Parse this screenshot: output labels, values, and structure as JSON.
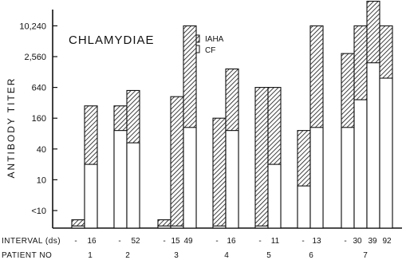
{
  "chart_data": {
    "type": "bar",
    "title": "CHLAMYDIAE",
    "ylabel": "ANTIBODY TITER",
    "yticks": [
      "<10",
      "10",
      "40",
      "160",
      "640",
      "2,560",
      "10,240"
    ],
    "ylim": [
      -1,
      7.6
    ],
    "y_scale": "log4 (titer steps; <10 = level 0, 10 = level 1, 40 = level 2, ...)",
    "legend": {
      "position": "top-center",
      "entries": [
        {
          "label": "IAHA",
          "pattern": "hatched"
        },
        {
          "label": "CF",
          "pattern": "open"
        }
      ]
    },
    "row_labels": {
      "interval": "INTERVAL (ds)",
      "patient": "PATIENT NO"
    },
    "patients": [
      {
        "id": "1",
        "samples": [
          {
            "interval": "-",
            "CF": -0.5,
            "IAHA": -0.3
          },
          {
            "interval": "16",
            "CF": 1.5,
            "IAHA": 3.4
          }
        ]
      },
      {
        "id": "2",
        "samples": [
          {
            "interval": "-",
            "CF": 2.6,
            "IAHA": 3.4
          },
          {
            "interval": "52",
            "CF": 2.2,
            "IAHA": 3.9
          }
        ]
      },
      {
        "id": "3",
        "samples": [
          {
            "interval": "-",
            "CF": -0.5,
            "IAHA": -0.3
          },
          {
            "interval": "15",
            "CF": -0.5,
            "IAHA": 3.7
          },
          {
            "interval": "49",
            "CF": 2.7,
            "IAHA": 6.0
          }
        ]
      },
      {
        "id": "4",
        "samples": [
          {
            "interval": "-",
            "CF": -0.5,
            "IAHA": 3.0
          },
          {
            "interval": "16",
            "CF": 2.6,
            "IAHA": 4.6
          }
        ]
      },
      {
        "id": "5",
        "samples": [
          {
            "interval": "-",
            "CF": -0.5,
            "IAHA": 4.0
          },
          {
            "interval": "11",
            "CF": 1.5,
            "IAHA": 4.0
          }
        ]
      },
      {
        "id": "6",
        "samples": [
          {
            "interval": "-",
            "CF": 0.8,
            "IAHA": 2.6
          },
          {
            "interval": "13",
            "CF": 2.7,
            "IAHA": 6.0
          }
        ]
      },
      {
        "id": "7",
        "samples": [
          {
            "interval": "-",
            "CF": 2.7,
            "IAHA": 5.1
          },
          {
            "interval": "30",
            "CF": 3.6,
            "IAHA": 6.0
          },
          {
            "interval": "39",
            "CF": 4.8,
            "IAHA": 6.8
          },
          {
            "interval": "92",
            "CF": 4.3,
            "IAHA": 6.0
          }
        ]
      }
    ]
  }
}
